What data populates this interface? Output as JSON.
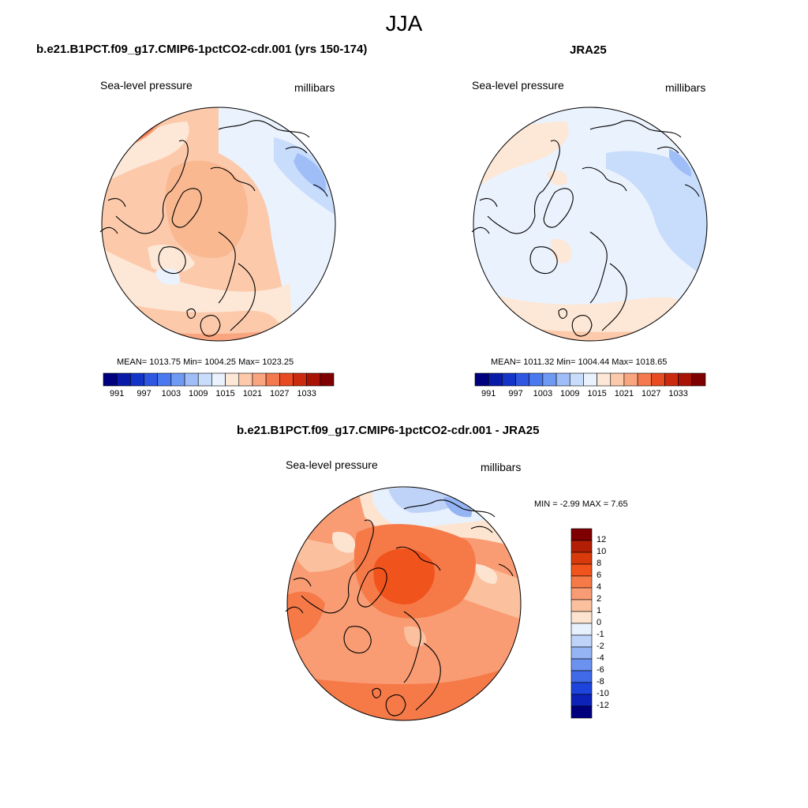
{
  "figure": {
    "season": "JJA"
  },
  "panels": [
    {
      "title": "b.e21.B1PCT.f09_g17.CMIP6-1pctCO2-cdr.001 (yrs 150-174)",
      "left_label": "Sea-level pressure",
      "right_label": "millibars",
      "stats": {
        "mean": "1013.75",
        "min": "1004.25",
        "max": "1023.25"
      },
      "stats_text": "MEAN= 1013.75  Min= 1004.25  Max= 1023.25"
    },
    {
      "title": "JRA25",
      "left_label": "Sea-level pressure",
      "right_label": "millibars",
      "stats": {
        "mean": "1011.32",
        "min": "1004.44",
        "max": "1018.65"
      },
      "stats_text": "MEAN= 1011.32  Min= 1004.44  Max= 1018.65"
    },
    {
      "title": "b.e21.B1PCT.f09_g17.CMIP6-1pctCO2-cdr.001 - JRA25",
      "left_label": "Sea-level pressure",
      "right_label": "millibars",
      "stats": {
        "min": "-2.99",
        "max": "7.65"
      },
      "stats_text": "MIN =  -2.99 MAX =   7.65"
    }
  ],
  "colorbar_abs": {
    "orientation": "horizontal",
    "tick_labels": [
      "991",
      "997",
      "1003",
      "1009",
      "1015",
      "1021",
      "1027",
      "1033"
    ],
    "colors": [
      "#00007f",
      "#0a1aa8",
      "#1433c8",
      "#2e56e0",
      "#4a78ee",
      "#6f9af4",
      "#9fbef8",
      "#c8dcfb",
      "#eaf2fd",
      "#fde7d6",
      "#fcc9ab",
      "#f9a57f",
      "#f4794f",
      "#e84a22",
      "#cc2a0e",
      "#a81306",
      "#7f0000"
    ]
  },
  "colorbar_diff": {
    "orientation": "vertical",
    "tick_labels": [
      "12",
      "10",
      "8",
      "6",
      "4",
      "2",
      "1",
      "0",
      "-1",
      "-2",
      "-4",
      "-6",
      "-8",
      "-10",
      "-12"
    ],
    "colors": [
      "#7f0000",
      "#b21f04",
      "#d93a0c",
      "#f1531c",
      "#f67a48",
      "#f99c73",
      "#fbc19f",
      "#fde4d0",
      "#e7f0fd",
      "#bfd3f9",
      "#95b4f4",
      "#6b92ef",
      "#3f6ae8",
      "#1d45dd",
      "#0c22b8",
      "#00007f"
    ]
  },
  "chart_data": {
    "type": "heatmap",
    "maps": [
      {
        "title": "b.e21.B1PCT.f09_g17.CMIP6-1pctCO2-cdr.001 (yrs 150-174)",
        "mean": 1013.75,
        "min": 1004.25,
        "max": 1023.25
      },
      {
        "title": "JRA25",
        "mean": 1011.32,
        "min": 1004.44,
        "max": 1018.65
      },
      {
        "title": "b.e21.B1PCT.f09_g17.CMIP6-1pctCO2-cdr.001 - JRA25",
        "min": -2.99,
        "max": 7.65
      }
    ]
  }
}
